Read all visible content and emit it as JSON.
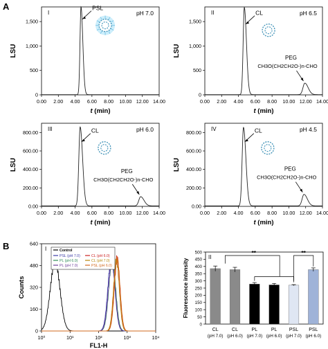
{
  "panel_a_label": "A",
  "panel_b_label": "B",
  "chart_data": [
    {
      "id": "A-I",
      "type": "line",
      "roman": "I",
      "ph": "pH 7.0",
      "ylabel": "LSU",
      "xlabel": "t (min)",
      "xlim": [
        0,
        14
      ],
      "ylim": [
        0,
        1800
      ],
      "xticks": [
        "0.00",
        "2.00",
        "4.00",
        "6.00",
        "8.00",
        "10.00",
        "12.00",
        "14.00"
      ],
      "yticks": [
        "0",
        "500",
        "1,000",
        "1,500"
      ],
      "ytick_values": [
        0,
        500,
        1000,
        1500
      ],
      "peaks": [
        {
          "x": 4.7,
          "y": 1800,
          "width": 0.12
        }
      ],
      "baseline": 5,
      "annotations": [
        {
          "text": "PSL",
          "x": 4.7,
          "y": 1550
        }
      ],
      "peg_label": ""
    },
    {
      "id": "A-II",
      "type": "line",
      "roman": "II",
      "ph": "pH 6.5",
      "ylabel": "LSU",
      "xlabel": "t (min)",
      "xlim": [
        0,
        14
      ],
      "ylim": [
        0,
        1800
      ],
      "xticks": [
        "0.00",
        "2.00",
        "4.00",
        "6.00",
        "8.00",
        "10.00",
        "12.00",
        "14.00"
      ],
      "yticks": [
        "0",
        "500",
        "1,000",
        "1,500"
      ],
      "ytick_values": [
        0,
        500,
        1000,
        1500
      ],
      "peaks": [
        {
          "x": 4.7,
          "y": 1790,
          "width": 0.14
        },
        {
          "x": 11.9,
          "y": 240,
          "width": 0.22
        }
      ],
      "baseline": 5,
      "annotations": [
        {
          "text": "CL",
          "x": 4.7,
          "y": 1450
        }
      ],
      "peg_label": "PEG",
      "peg_formula": "CH3O(CH2CH2O-)n-CHO"
    },
    {
      "id": "A-III",
      "type": "line",
      "roman": "III",
      "ph": "pH 6.0",
      "ylabel": "LSU",
      "xlabel": "t (min)",
      "xlim": [
        0,
        14
      ],
      "ylim": [
        0,
        900
      ],
      "xticks": [
        "0.00",
        "2.00",
        "4.00",
        "6.00",
        "8.00",
        "10.00",
        "12.00",
        "14.00"
      ],
      "yticks": [
        "0.00",
        "200.00",
        "400.00",
        "600.00",
        "800.00"
      ],
      "ytick_values": [
        0,
        200,
        400,
        600,
        800
      ],
      "peaks": [
        {
          "x": 4.6,
          "y": 860,
          "width": 0.16
        },
        {
          "x": 11.8,
          "y": 105,
          "width": 0.22
        }
      ],
      "baseline": 5,
      "annotations": [
        {
          "text": "CL",
          "x": 4.6,
          "y": 700
        }
      ],
      "peg_label": "PEG",
      "peg_formula": "CH3O(CH2CH2O-)n-CHO"
    },
    {
      "id": "A-IV",
      "type": "line",
      "roman": "IV",
      "ph": "pH 4.5",
      "ylabel": "LSU",
      "xlabel": "t (min)",
      "xlim": [
        0,
        14
      ],
      "ylim": [
        0,
        900
      ],
      "xticks": [
        "0.00",
        "2.00",
        "4.00",
        "6.00",
        "8.00",
        "10.00",
        "12.00",
        "14.00"
      ],
      "yticks": [
        "0.00",
        "200.00",
        "400.00",
        "600.00",
        "800.00"
      ],
      "ytick_values": [
        0,
        200,
        400,
        600,
        800
      ],
      "peaks": [
        {
          "x": 4.6,
          "y": 855,
          "width": 0.16
        },
        {
          "x": 11.8,
          "y": 130,
          "width": 0.22
        }
      ],
      "baseline": 5,
      "annotations": [
        {
          "text": "CL",
          "x": 4.6,
          "y": 700
        }
      ],
      "peg_label": "PEG",
      "peg_formula": "CH3O(CH2CH2O-)n-CHO"
    },
    {
      "id": "B-I",
      "type": "line",
      "roman": "I",
      "xlabel": "FL1-H",
      "ylabel": "Counts",
      "xscale": "log",
      "xlim": [
        1,
        10000
      ],
      "ylim": [
        0,
        640
      ],
      "xticks": [
        "10⁰",
        "10¹",
        "10²",
        "10³",
        "10⁴"
      ],
      "xtick_values": [
        1,
        10,
        100,
        1000,
        10000
      ],
      "yticks": [
        "0",
        "160",
        "320",
        "480",
        "640"
      ],
      "ytick_values": [
        0,
        160,
        320,
        480,
        640
      ],
      "legend_placement": "top-left",
      "legend": [
        {
          "name": "Control",
          "color": "#000000"
        },
        {
          "name": "PSL (pH 7.0)",
          "color": "#3c3ca8"
        },
        {
          "name": "PL (pH 6.0)",
          "color": "#2e8b57"
        },
        {
          "name": "PL (pH 7.0)",
          "color": "#6a3d9a"
        },
        {
          "name": "CL (pH 6.0)",
          "color": "#cc2222"
        },
        {
          "name": "CL (pH 7.0)",
          "color": "#b8860b"
        },
        {
          "name": "PSL (pH 6.0)",
          "color": "#d2691e"
        }
      ],
      "series": [
        {
          "name": "Control",
          "center": 3,
          "height": 510,
          "sigma": 0.17
        },
        {
          "name": "PSL (pH 7.0)",
          "center": 280,
          "height": 540,
          "sigma": 0.12
        },
        {
          "name": "PL (pH 6.0)",
          "center": 300,
          "height": 520,
          "sigma": 0.12
        },
        {
          "name": "PL (pH 7.0)",
          "center": 290,
          "height": 500,
          "sigma": 0.12
        },
        {
          "name": "CL (pH 6.0)",
          "center": 440,
          "height": 535,
          "sigma": 0.1
        },
        {
          "name": "CL (pH 7.0)",
          "center": 420,
          "height": 520,
          "sigma": 0.1
        },
        {
          "name": "PSL (pH 6.0)",
          "center": 450,
          "height": 525,
          "sigma": 0.1
        }
      ]
    },
    {
      "id": "B-II",
      "type": "bar",
      "roman": "II",
      "ylabel": "Fluorescence intensity",
      "ylim": [
        0,
        500
      ],
      "yticks": [
        "0",
        "50",
        "100",
        "150",
        "200",
        "250",
        "300",
        "350",
        "400",
        "450",
        "500"
      ],
      "ytick_values": [
        0,
        50,
        100,
        150,
        200,
        250,
        300,
        350,
        400,
        450,
        500
      ],
      "categories": [
        "CL",
        "CL",
        "PL",
        "PL",
        "PSL",
        "PSL"
      ],
      "subcategories": [
        "(pH 7.0)",
        "(pH 6.0)",
        "(pH 7.0)",
        "(pH 6.0)",
        "(pH 7.0)",
        "(pH 6.0)"
      ],
      "values": [
        385,
        378,
        278,
        272,
        270,
        378
      ],
      "errors": [
        18,
        16,
        10,
        10,
        4,
        12
      ],
      "colors": [
        "#8a8a8a",
        "#8a8a8a",
        "#000000",
        "#000000",
        "#dfe6f3",
        "#9fb3d8"
      ],
      "significance": [
        {
          "from": 0,
          "to": 3,
          "label": "**"
        },
        {
          "from": 4,
          "to": 5,
          "label": "**"
        }
      ]
    }
  ]
}
